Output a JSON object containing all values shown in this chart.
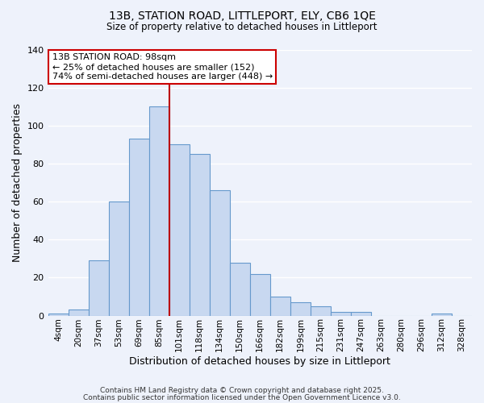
{
  "title1": "13B, STATION ROAD, LITTLEPORT, ELY, CB6 1QE",
  "title2": "Size of property relative to detached houses in Littleport",
  "xlabel": "Distribution of detached houses by size in Littleport",
  "ylabel": "Number of detached properties",
  "bar_labels": [
    "4sqm",
    "20sqm",
    "37sqm",
    "53sqm",
    "69sqm",
    "85sqm",
    "101sqm",
    "118sqm",
    "134sqm",
    "150sqm",
    "166sqm",
    "182sqm",
    "199sqm",
    "215sqm",
    "231sqm",
    "247sqm",
    "263sqm",
    "280sqm",
    "296sqm",
    "312sqm",
    "328sqm"
  ],
  "bar_values": [
    1,
    3,
    29,
    60,
    93,
    110,
    90,
    85,
    66,
    28,
    22,
    10,
    7,
    5,
    2,
    2,
    0,
    0,
    0,
    1,
    0
  ],
  "bar_color": "#c8d8f0",
  "bar_edge_color": "#6699cc",
  "background_color": "#eef2fb",
  "grid_color": "#ffffff",
  "vline_color": "#bb0000",
  "annotation_text": "13B STATION ROAD: 98sqm\n← 25% of detached houses are smaller (152)\n74% of semi-detached houses are larger (448) →",
  "annotation_box_edge": "#cc0000",
  "ylim": [
    0,
    140
  ],
  "yticks": [
    0,
    20,
    40,
    60,
    80,
    100,
    120,
    140
  ],
  "footnote1": "Contains HM Land Registry data © Crown copyright and database right 2025.",
  "footnote2": "Contains public sector information licensed under the Open Government Licence v3.0."
}
